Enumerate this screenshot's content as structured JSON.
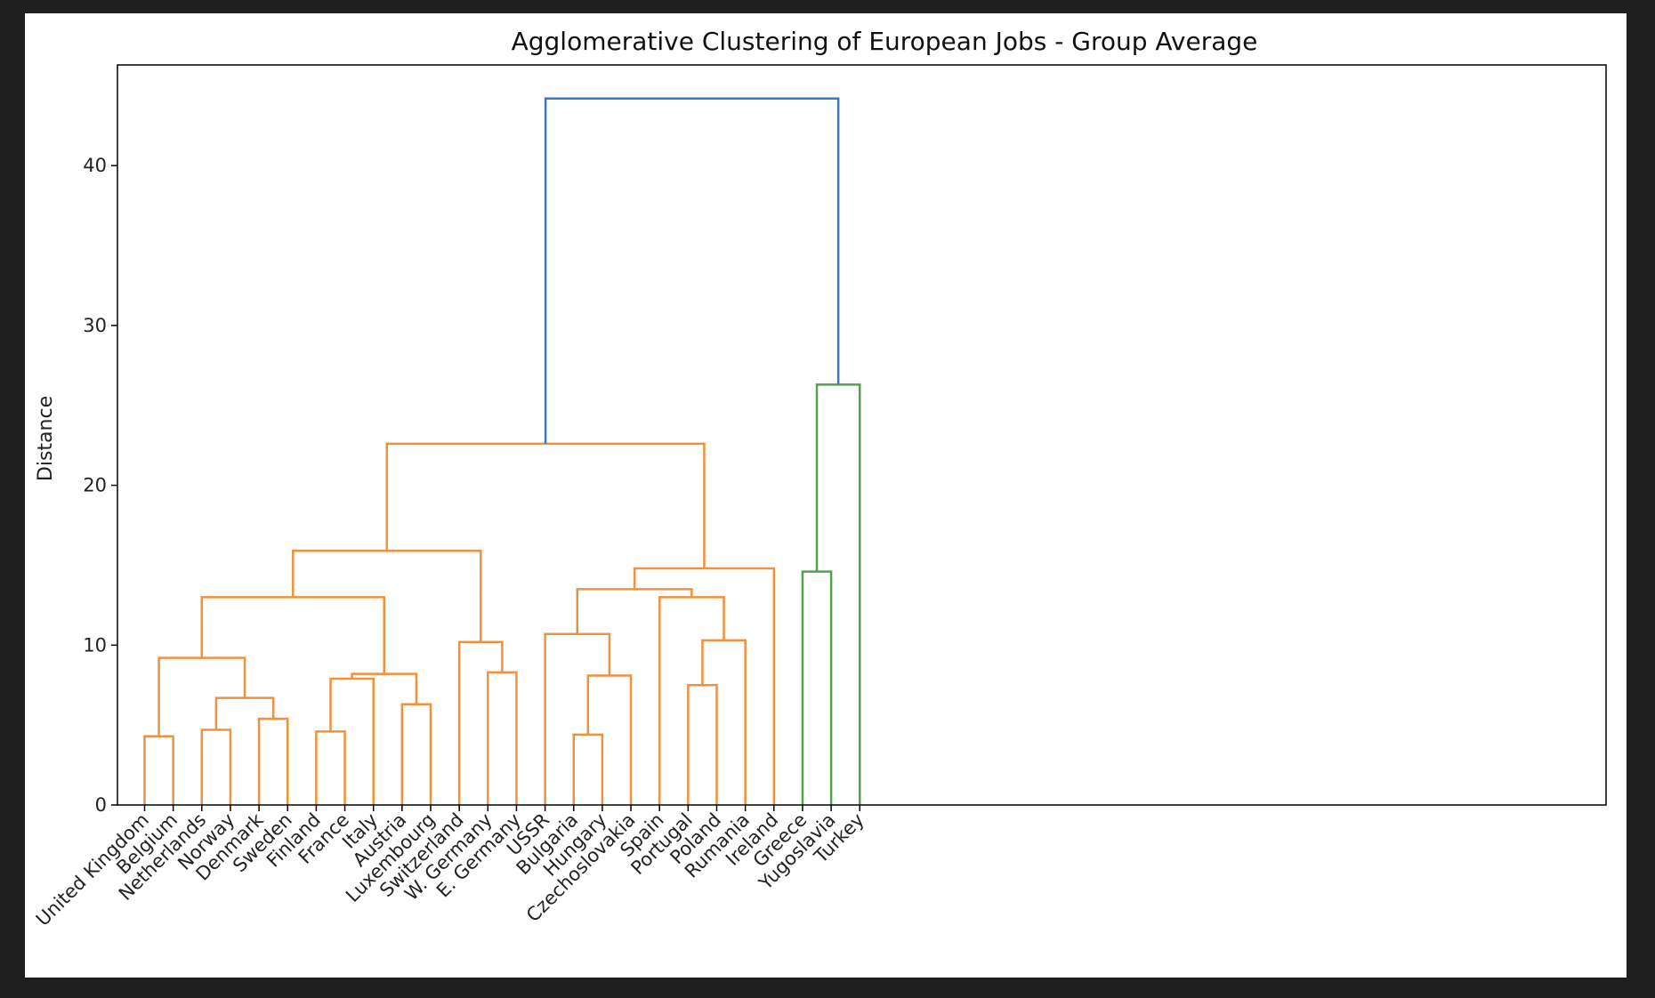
{
  "chart_data": {
    "type": "dendrogram",
    "title": "Agglomerative Clustering of European Jobs - Group Average",
    "xlabel": "",
    "ylabel": "Distance",
    "ylim": [
      0,
      46.3
    ],
    "yticks": [
      0,
      10,
      20,
      30,
      40
    ],
    "grid": false,
    "leaves": [
      "United Kingdom",
      "Belgium",
      "Netherlands",
      "Norway",
      "Denmark",
      "Sweden",
      "Finland",
      "France",
      "Italy",
      "Austria",
      "Luxembourg",
      "Switzerland",
      "W. Germany",
      "E. Germany",
      "USSR",
      "Bulgaria",
      "Hungary",
      "Czechoslovakia",
      "Spain",
      "Portugal",
      "Poland",
      "Rumania",
      "Ireland",
      "Greece",
      "Yugoslavia",
      "Turkey"
    ],
    "merges": [
      {
        "left": 0,
        "right": 1,
        "height": 4.3,
        "color": "#f0913d"
      },
      {
        "left": 2,
        "right": 3,
        "height": 4.7,
        "color": "#f0913d"
      },
      {
        "left": 4,
        "right": 5,
        "height": 5.4,
        "color": "#f0913d"
      },
      {
        "left": 27,
        "right": 28,
        "height": 6.7,
        "color": "#f0913d"
      },
      {
        "left": 26,
        "right": 29,
        "height": 9.2,
        "color": "#f0913d"
      },
      {
        "left": 6,
        "right": 7,
        "height": 4.6,
        "color": "#f0913d"
      },
      {
        "left": 31,
        "right": 8,
        "height": 7.9,
        "color": "#f0913d"
      },
      {
        "left": 9,
        "right": 10,
        "height": 6.3,
        "color": "#f0913d"
      },
      {
        "left": 32,
        "right": 33,
        "height": 8.2,
        "color": "#f0913d"
      },
      {
        "left": 30,
        "right": 34,
        "height": 13.0,
        "color": "#f0913d"
      },
      {
        "left": 12,
        "right": 13,
        "height": 8.3,
        "color": "#f0913d"
      },
      {
        "left": 11,
        "right": 36,
        "height": 10.2,
        "color": "#f0913d"
      },
      {
        "left": 35,
        "right": 37,
        "height": 15.9,
        "color": "#f0913d"
      },
      {
        "left": 15,
        "right": 16,
        "height": 4.4,
        "color": "#f0913d"
      },
      {
        "left": 39,
        "right": 17,
        "height": 8.1,
        "color": "#f0913d"
      },
      {
        "left": 14,
        "right": 40,
        "height": 10.7,
        "color": "#f0913d"
      },
      {
        "left": 19,
        "right": 20,
        "height": 7.5,
        "color": "#f0913d"
      },
      {
        "left": 42,
        "right": 21,
        "height": 10.3,
        "color": "#f0913d"
      },
      {
        "left": 18,
        "right": 43,
        "height": 13.0,
        "color": "#f0913d"
      },
      {
        "left": 41,
        "right": 44,
        "height": 13.5,
        "color": "#f0913d"
      },
      {
        "left": 45,
        "right": 22,
        "height": 14.8,
        "color": "#f0913d"
      },
      {
        "left": 38,
        "right": 46,
        "height": 22.6,
        "color": "#f0913d"
      },
      {
        "left": 23,
        "right": 24,
        "height": 14.6,
        "color": "#54a24b"
      },
      {
        "left": 48,
        "right": 25,
        "height": 26.3,
        "color": "#54a24b"
      },
      {
        "left": 47,
        "right": 49,
        "height": 44.2,
        "color": "#3a78c3"
      }
    ]
  }
}
